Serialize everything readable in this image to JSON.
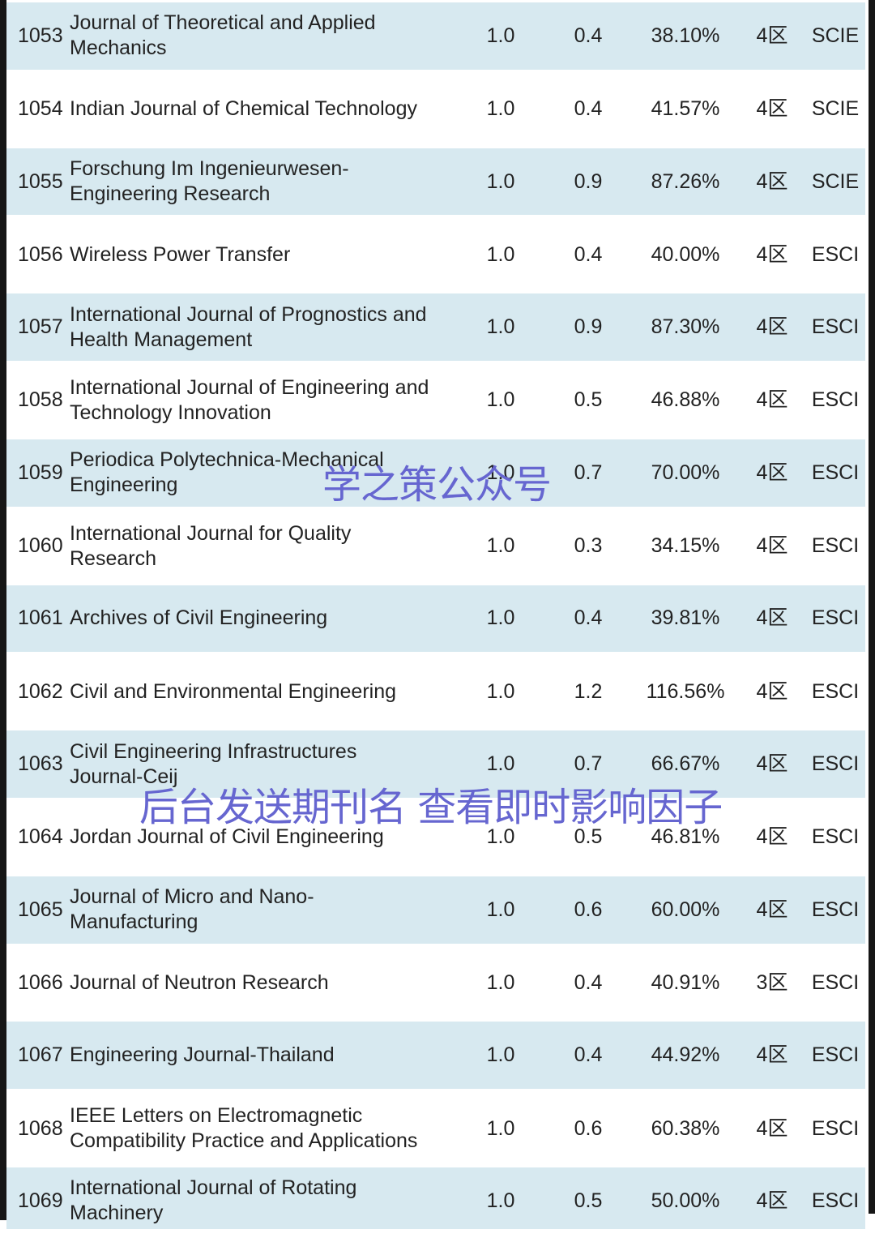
{
  "page": {
    "watermark1": "学之策公众号",
    "watermark2": "后台发送期刊名 查看即时影响因子",
    "watermark_color": "#6666d0",
    "row_alt_color": "#d7e9f0"
  },
  "table": {
    "rows": [
      {
        "rank": "1053",
        "name": "Journal of Theoretical and Applied\nMechanics",
        "v1": "1.0",
        "v2": "0.4",
        "pct": "38.10%",
        "zone": "4区",
        "cat": "SCIE"
      },
      {
        "rank": "1054",
        "name": "Indian Journal of Chemical Technology",
        "v1": "1.0",
        "v2": "0.4",
        "pct": "41.57%",
        "zone": "4区",
        "cat": "SCIE"
      },
      {
        "rank": "1055",
        "name": "Forschung Im Ingenieurwesen-\nEngineering Research",
        "v1": "1.0",
        "v2": "0.9",
        "pct": "87.26%",
        "zone": "4区",
        "cat": "SCIE"
      },
      {
        "rank": "1056",
        "name": "Wireless Power Transfer",
        "v1": "1.0",
        "v2": "0.4",
        "pct": "40.00%",
        "zone": "4区",
        "cat": "ESCI"
      },
      {
        "rank": "1057",
        "name": "International Journal of Prognostics and\nHealth Management",
        "v1": "1.0",
        "v2": "0.9",
        "pct": "87.30%",
        "zone": "4区",
        "cat": "ESCI"
      },
      {
        "rank": "1058",
        "name": "International Journal of Engineering and\nTechnology Innovation",
        "v1": "1.0",
        "v2": "0.5",
        "pct": "46.88%",
        "zone": "4区",
        "cat": "ESCI"
      },
      {
        "rank": "1059",
        "name": "Periodica Polytechnica-Mechanical\nEngineering",
        "v1": "1.0",
        "v2": "0.7",
        "pct": "70.00%",
        "zone": "4区",
        "cat": "ESCI"
      },
      {
        "rank": "1060",
        "name": "International Journal for Quality\nResearch",
        "v1": "1.0",
        "v2": "0.3",
        "pct": "34.15%",
        "zone": "4区",
        "cat": "ESCI"
      },
      {
        "rank": "1061",
        "name": "Archives of Civil Engineering",
        "v1": "1.0",
        "v2": "0.4",
        "pct": "39.81%",
        "zone": "4区",
        "cat": "ESCI"
      },
      {
        "rank": "1062",
        "name": "Civil and Environmental Engineering",
        "v1": "1.0",
        "v2": "1.2",
        "pct": "116.56%",
        "zone": "4区",
        "cat": "ESCI"
      },
      {
        "rank": "1063",
        "name": "Civil Engineering Infrastructures\nJournal-Ceij",
        "v1": "1.0",
        "v2": "0.7",
        "pct": "66.67%",
        "zone": "4区",
        "cat": "ESCI"
      },
      {
        "rank": "1064",
        "name": "Jordan Journal of Civil Engineering",
        "v1": "1.0",
        "v2": "0.5",
        "pct": "46.81%",
        "zone": "4区",
        "cat": "ESCI"
      },
      {
        "rank": "1065",
        "name": "Journal of Micro and Nano-\nManufacturing",
        "v1": "1.0",
        "v2": "0.6",
        "pct": "60.00%",
        "zone": "4区",
        "cat": "ESCI"
      },
      {
        "rank": "1066",
        "name": "Journal of Neutron Research",
        "v1": "1.0",
        "v2": "0.4",
        "pct": "40.91%",
        "zone": "3区",
        "cat": "ESCI"
      },
      {
        "rank": "1067",
        "name": "Engineering Journal-Thailand",
        "v1": "1.0",
        "v2": "0.4",
        "pct": "44.92%",
        "zone": "4区",
        "cat": "ESCI"
      },
      {
        "rank": "1068",
        "name": "IEEE Letters on Electromagnetic\nCompatibility Practice and Applications",
        "v1": "1.0",
        "v2": "0.6",
        "pct": "60.38%",
        "zone": "4区",
        "cat": "ESCI"
      },
      {
        "rank": "1069",
        "name": "International Journal of Rotating\nMachinery",
        "v1": "1.0",
        "v2": "0.5",
        "pct": "50.00%",
        "zone": "4区",
        "cat": "ESCI"
      }
    ]
  }
}
